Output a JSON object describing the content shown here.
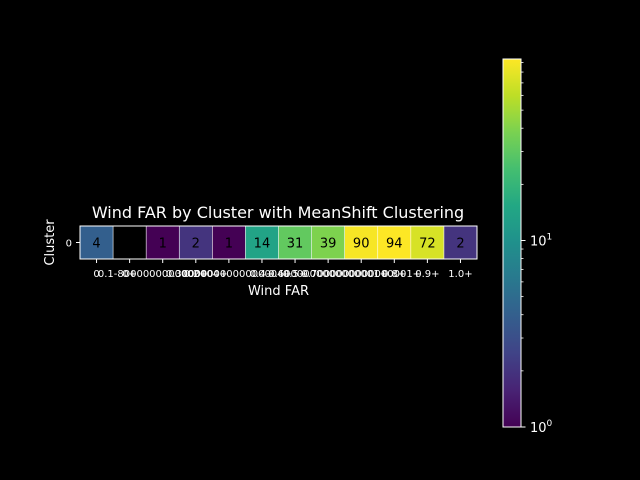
{
  "chart_data": {
    "type": "heatmap",
    "title": "Wind FAR by Cluster with MeanShift Clustering",
    "xlabel": "Wind FAR",
    "ylabel": "Cluster",
    "x_tick_labels": [
      "0",
      "0+",
      "0.1-8000000000000004+",
      "0.2+",
      "0.30000000000000004+",
      "0.4+",
      "0.5+",
      "0.6000000000000001+",
      "0.7000000000000001+",
      "0.8+",
      "0.9+",
      "1.0+"
    ],
    "y_tick_labels": [
      "0"
    ],
    "values": [
      [
        4,
        null,
        1,
        2,
        1,
        14,
        31,
        39,
        90,
        94,
        72,
        2
      ]
    ],
    "cell_labels": [
      [
        "4",
        "",
        "1",
        "2",
        "1",
        "14",
        "31",
        "39",
        "90",
        "94",
        "72",
        "2"
      ]
    ],
    "colormap": "viridis",
    "color_scale": "log",
    "color_range": [
      1,
      94
    ],
    "colorbar_ticks": [
      {
        "base": "10",
        "exp": "0",
        "value": 1
      },
      {
        "base": "10",
        "exp": "1",
        "value": 10
      }
    ],
    "missing_color": "#000000",
    "cell_border_color": "#ffffff",
    "background": "#000000"
  }
}
